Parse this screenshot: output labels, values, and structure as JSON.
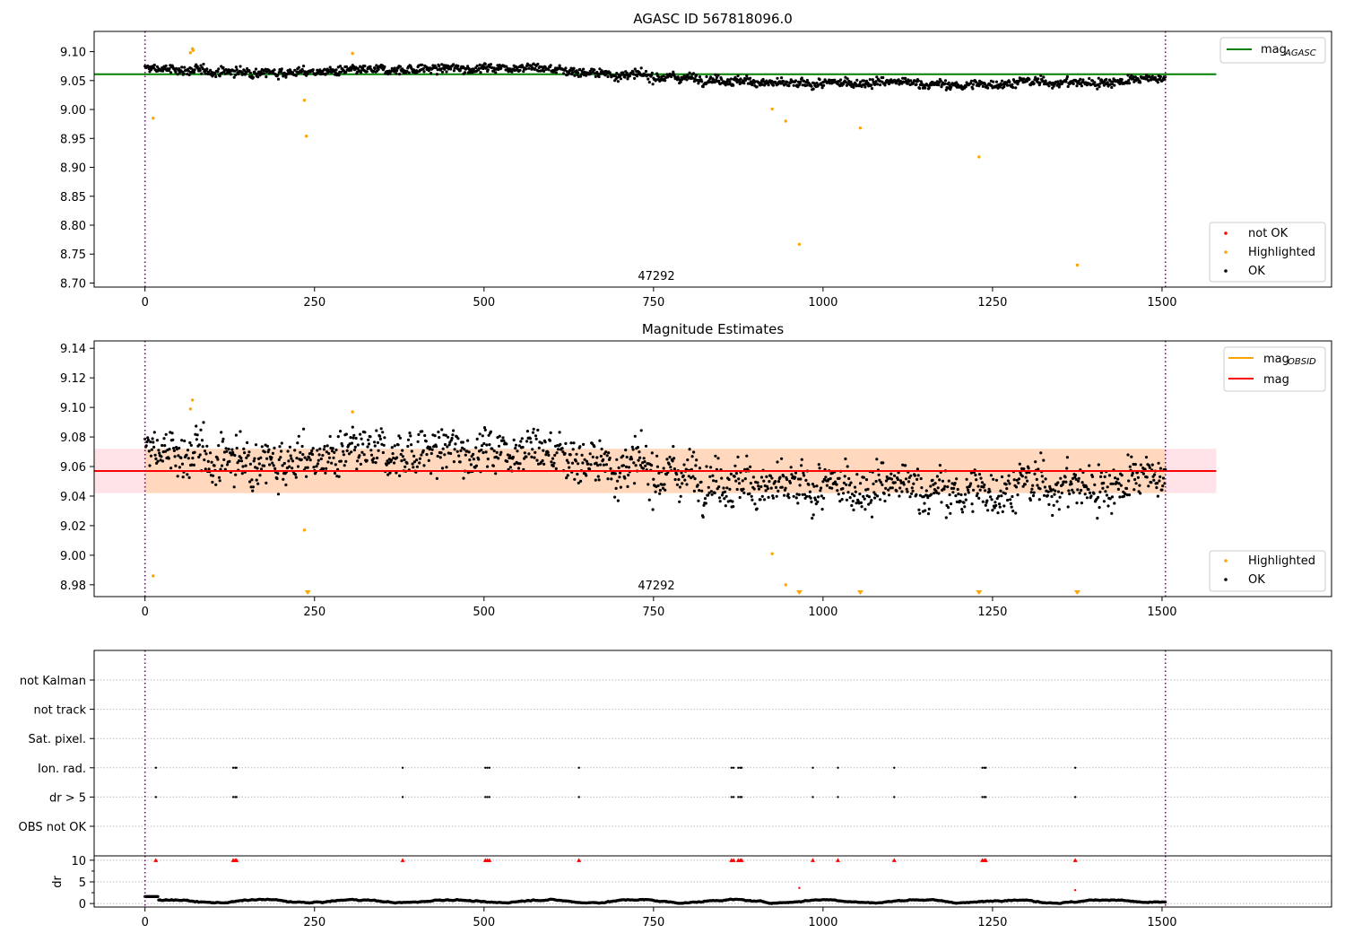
{
  "chart_data": [
    {
      "type": "scatter",
      "title": "AGASC ID 567818096.0",
      "xlim": [
        -75,
        1750
      ],
      "ylim": [
        8.693,
        9.135
      ],
      "xticks": [
        0,
        250,
        500,
        750,
        1000,
        1250,
        1500
      ],
      "xtick_labels": [
        "0",
        "250",
        "500",
        "750",
        "1000",
        "1250",
        "1500"
      ],
      "yticks": [
        8.7,
        8.75,
        8.8,
        8.85,
        8.9,
        8.95,
        9.0,
        9.05,
        9.1
      ],
      "ytick_labels": [
        "8.70",
        "8.75",
        "8.80",
        "8.85",
        "8.90",
        "8.95",
        "9.00",
        "9.05",
        "9.10"
      ],
      "vlines": [
        0,
        1505
      ],
      "annotation": "47292",
      "annotation_x": 752,
      "reference_line": {
        "value": 9.061,
        "x": [
          -75,
          1580
        ],
        "color": "#008000"
      },
      "legend_top": [
        {
          "label": "mag",
          "sub": "AGASC",
          "color": "#008000",
          "kind": "line"
        }
      ],
      "legend_top_position": "upper right",
      "legend_bottom": [
        {
          "label": "not OK",
          "color": "#ff0000",
          "kind": "dot"
        },
        {
          "label": "Highlighted",
          "color": "#ffa500",
          "kind": "dot"
        },
        {
          "label": "OK",
          "color": "#000000",
          "kind": "dot"
        }
      ],
      "legend_bottom_position": "lower right",
      "series": [
        {
          "name": "OK",
          "color": "#000000",
          "n_points": 1500,
          "trend": [
            [
              0,
              9.071
            ],
            [
              100,
              9.066
            ],
            [
              200,
              9.064
            ],
            [
              300,
              9.066
            ],
            [
              400,
              9.07
            ],
            [
              500,
              9.072
            ],
            [
              560,
              9.074
            ],
            [
              650,
              9.064
            ],
            [
              750,
              9.057
            ],
            [
              800,
              9.055
            ],
            [
              850,
              9.052
            ],
            [
              950,
              9.043
            ],
            [
              1100,
              9.048
            ],
            [
              1200,
              9.041
            ],
            [
              1300,
              9.048
            ],
            [
              1400,
              9.046
            ],
            [
              1505,
              9.055
            ]
          ],
          "spread": 0.012
        },
        {
          "name": "Highlighted",
          "color": "#ffa500",
          "points": [
            [
              12,
              8.985
            ],
            [
              67,
              9.098
            ],
            [
              70,
              9.105
            ],
            [
              71,
              9.102
            ],
            [
              235,
              9.016
            ],
            [
              238,
              8.954
            ],
            [
              306,
              9.097
            ],
            [
              925,
              9.001
            ],
            [
              945,
              8.98
            ],
            [
              965,
              8.767
            ],
            [
              1055,
              8.968
            ],
            [
              1230,
              8.918
            ],
            [
              1375,
              8.731
            ]
          ]
        }
      ]
    },
    {
      "type": "scatter",
      "title": "Magnitude Estimates",
      "xlim": [
        -75,
        1750
      ],
      "ylim": [
        8.972,
        9.145
      ],
      "xticks": [
        0,
        250,
        500,
        750,
        1000,
        1250,
        1500
      ],
      "xtick_labels": [
        "0",
        "250",
        "500",
        "750",
        "1000",
        "1250",
        "1500"
      ],
      "yticks": [
        8.98,
        9.0,
        9.02,
        9.04,
        9.06,
        9.08,
        9.1,
        9.12,
        9.14
      ],
      "ytick_labels": [
        "8.98",
        "9.00",
        "9.02",
        "9.04",
        "9.06",
        "9.08",
        "9.10",
        "9.12",
        "9.14"
      ],
      "vlines": [
        0,
        1505
      ],
      "annotation": "47292",
      "annotation_x": 752,
      "mag_line": {
        "value": 9.057,
        "x": [
          -75,
          1580
        ],
        "color": "#ff0000"
      },
      "mag_band": {
        "range": [
          9.042,
          9.072
        ],
        "x": [
          -75,
          1580
        ],
        "color": "#ffc0cb"
      },
      "obsid_band": {
        "range": [
          9.042,
          9.072
        ],
        "x": [
          0,
          1505
        ],
        "color": "#ffa500"
      },
      "legend_top": [
        {
          "label": "mag",
          "sub": "OBSID",
          "color": "#ffa500",
          "kind": "line"
        },
        {
          "label": "mag",
          "sub": "",
          "color": "#ff0000",
          "kind": "line"
        }
      ],
      "legend_top_position": "upper right",
      "legend_bottom": [
        {
          "label": "Highlighted",
          "color": "#ffa500",
          "kind": "dot"
        },
        {
          "label": "OK",
          "color": "#000000",
          "kind": "dot"
        }
      ],
      "legend_bottom_position": "lower right",
      "series": [
        {
          "name": "OK",
          "color": "#000000",
          "same_as_panel": 0,
          "spread": 0.013
        },
        {
          "name": "Highlighted",
          "color": "#ffa500",
          "points": [
            [
              12,
              8.986
            ],
            [
              67,
              9.099
            ],
            [
              70,
              9.105
            ],
            [
              235,
              9.017
            ],
            [
              306,
              9.097
            ],
            [
              925,
              9.001
            ],
            [
              945,
              8.98
            ]
          ],
          "clipped_below_x": [
            240,
            965,
            1055,
            1230,
            1375
          ]
        }
      ]
    },
    {
      "type": "scatter",
      "categories": [
        "OBS not OK",
        "dr > 5",
        "Ion. rad.",
        "Sat. pixel.",
        "not track",
        "not Kalman"
      ],
      "xlim": [
        -75,
        1750
      ],
      "vlines": [
        0,
        1505
      ],
      "flag_x": [
        16,
        130,
        133,
        135,
        380,
        502,
        505,
        508,
        640,
        865,
        868,
        875,
        878,
        880,
        985,
        1022,
        1105,
        1235,
        1238,
        1240,
        1372
      ],
      "flagged_rows": [
        "dr > 5",
        "Ion. rad."
      ]
    },
    {
      "type": "scatter",
      "xlim": [
        -75,
        1750
      ],
      "ylim": [
        -0.8,
        11
      ],
      "yticks": [
        0,
        5,
        10
      ],
      "ytick_labels": [
        "0",
        "5",
        "10"
      ],
      "ylabel": "dr",
      "xticks": [
        0,
        250,
        500,
        750,
        1000,
        1250,
        1500
      ],
      "xtick_labels": [
        "0",
        "250",
        "500",
        "750",
        "1000",
        "1250",
        "1500"
      ],
      "vlines": [
        0,
        1505
      ],
      "clip_value": 10,
      "series": [
        {
          "name": "OK",
          "color": "#000000",
          "n_points": 1500,
          "range": [
            0,
            1.6
          ]
        },
        {
          "name": "not OK",
          "color": "#ff0000",
          "points": [
            [
              965,
              3.6
            ],
            [
              1372,
              3.1
            ]
          ],
          "clipped_above_x": [
            16,
            130,
            133,
            135,
            380,
            502,
            505,
            508,
            640,
            865,
            868,
            875,
            878,
            880,
            985,
            1022,
            1105,
            1235,
            1238,
            1240,
            1372
          ]
        }
      ]
    }
  ]
}
